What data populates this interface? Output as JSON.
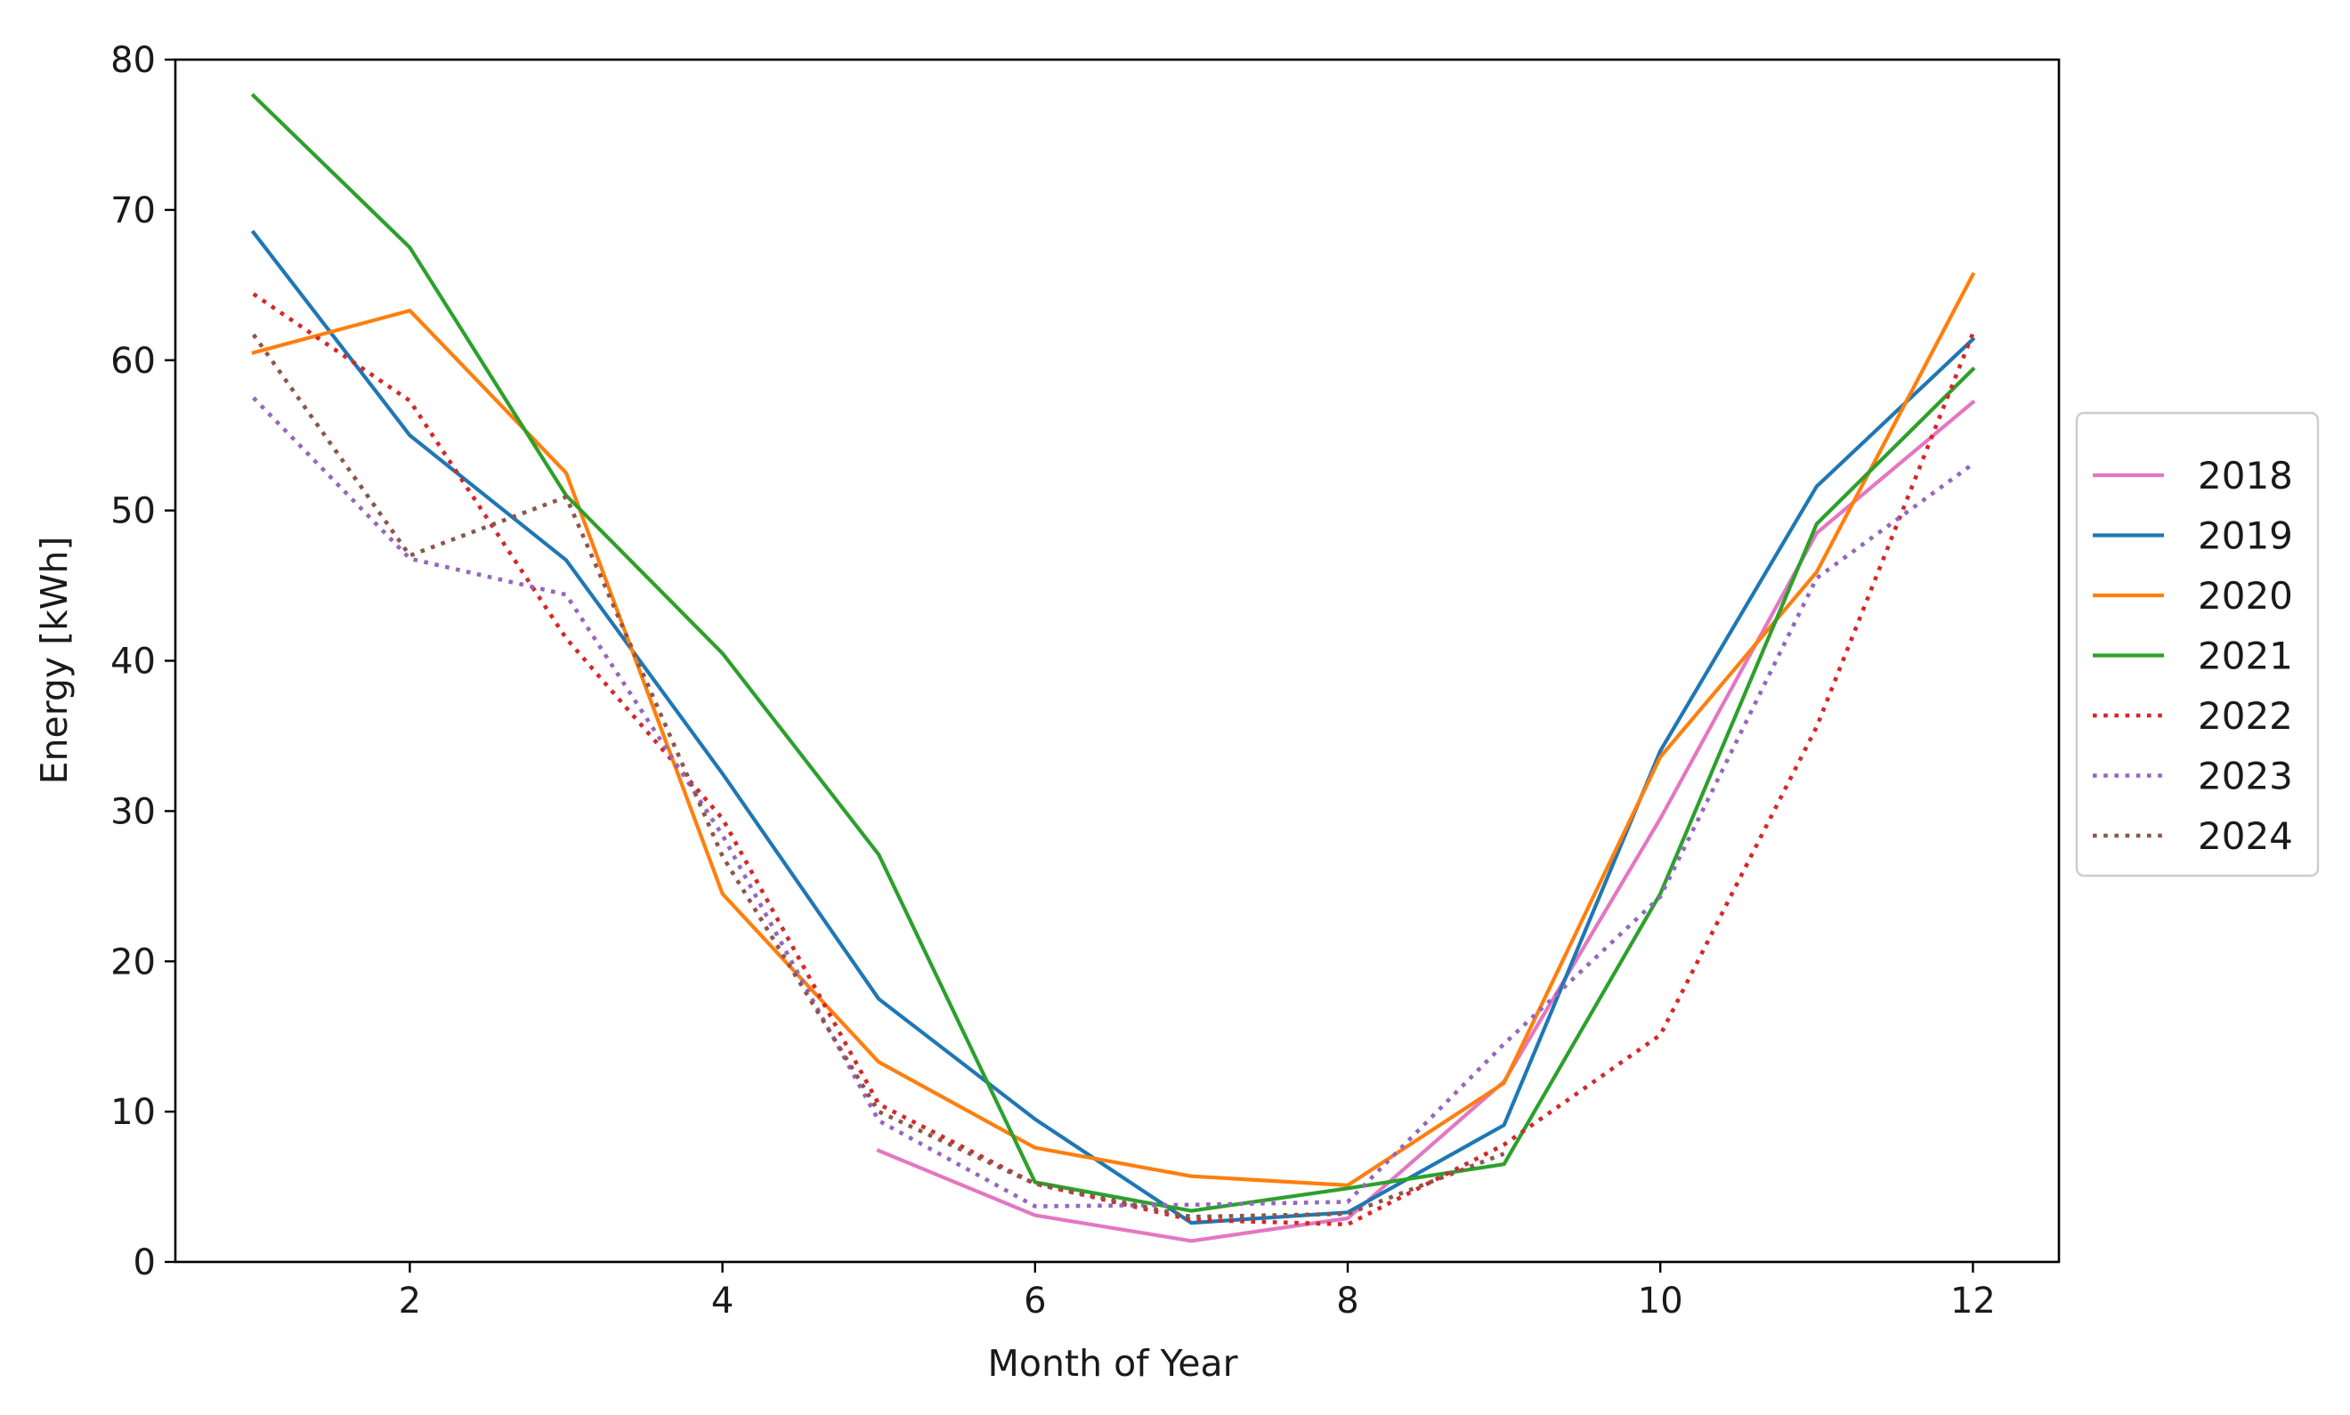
{
  "chart_data": {
    "type": "line",
    "title": "",
    "xlabel": "Month of Year",
    "ylabel": "Energy [kWh]",
    "xlim": [
      0.5,
      12.55
    ],
    "ylim": [
      0,
      80
    ],
    "xticks": [
      2,
      4,
      6,
      8,
      10,
      12
    ],
    "xtick_labels": [
      "2",
      "4",
      "6",
      "8",
      "10",
      "12"
    ],
    "yticks": [
      0,
      10,
      20,
      30,
      40,
      50,
      60,
      70,
      80
    ],
    "ytick_labels": [
      "0",
      "10",
      "20",
      "30",
      "40",
      "50",
      "60",
      "70",
      "80"
    ],
    "grid": false,
    "legend_position": "right-center",
    "series": [
      {
        "name": "2018",
        "color": "#e377c2",
        "style": "solid",
        "x": [
          5,
          6,
          7,
          8,
          9,
          10,
          11,
          12
        ],
        "y": [
          7.4,
          3.1,
          1.4,
          2.9,
          12.0,
          29.5,
          48.5,
          57.2
        ]
      },
      {
        "name": "2019",
        "color": "#1f77b4",
        "style": "solid",
        "x": [
          1,
          2,
          3,
          4,
          5,
          6,
          7,
          8,
          9,
          10,
          11,
          12
        ],
        "y": [
          68.5,
          55.0,
          46.7,
          32.5,
          17.5,
          9.5,
          2.6,
          3.3,
          9.1,
          34.0,
          51.6,
          61.4
        ]
      },
      {
        "name": "2020",
        "color": "#ff7f0e",
        "style": "solid",
        "x": [
          1,
          2,
          3,
          4,
          5,
          6,
          7,
          8,
          9,
          10,
          11,
          12
        ],
        "y": [
          60.5,
          63.3,
          52.5,
          24.5,
          13.3,
          7.6,
          5.7,
          5.1,
          11.9,
          33.6,
          45.9,
          65.7
        ]
      },
      {
        "name": "2021",
        "color": "#2ca02c",
        "style": "solid",
        "x": [
          1,
          2,
          3,
          4,
          5,
          6,
          7,
          8,
          9,
          10,
          11,
          12
        ],
        "y": [
          77.6,
          67.5,
          51.0,
          40.5,
          27.1,
          5.3,
          3.4,
          4.9,
          6.5,
          24.5,
          49.1,
          59.4
        ]
      },
      {
        "name": "2022",
        "color": "#d62728",
        "style": "dotted",
        "x": [
          1,
          2,
          3,
          4,
          5,
          6,
          7,
          8,
          9,
          10,
          11,
          12
        ],
        "y": [
          64.4,
          57.3,
          41.5,
          29.5,
          10.5,
          5.2,
          2.8,
          2.5,
          7.8,
          15.1,
          35.6,
          61.8
        ]
      },
      {
        "name": "2023",
        "color": "#9467bd",
        "style": "dotted",
        "x": [
          1,
          2,
          3,
          4,
          5,
          6,
          7,
          8,
          9,
          10,
          11,
          12
        ],
        "y": [
          57.5,
          46.8,
          44.4,
          28.4,
          9.4,
          3.7,
          3.8,
          4.0,
          14.5,
          24.3,
          45.5,
          53.1
        ]
      },
      {
        "name": "2024",
        "color": "#8c564b",
        "style": "dotted",
        "x": [
          1,
          2,
          3,
          4,
          5,
          6,
          7,
          8,
          9,
          10,
          11,
          12
        ],
        "y": [
          61.7,
          47.0,
          50.9,
          27.0,
          10.0,
          5.2,
          3.0,
          3.2,
          7.2,
          null,
          null,
          null
        ]
      }
    ]
  }
}
